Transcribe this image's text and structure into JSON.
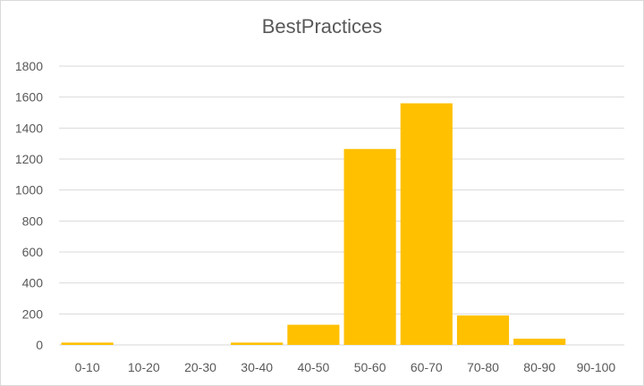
{
  "chart_data": {
    "type": "bar",
    "title": "BestPractices",
    "xlabel": "",
    "ylabel": "",
    "categories": [
      "0-10",
      "10-20",
      "20-30",
      "30-40",
      "40-50",
      "50-60",
      "60-70",
      "70-80",
      "80-90",
      "90-100"
    ],
    "values": [
      15,
      0,
      0,
      15,
      130,
      1265,
      1560,
      190,
      40,
      0
    ],
    "ylim": [
      0,
      1800
    ],
    "yticks": [
      "0",
      "200",
      "400",
      "600",
      "800",
      "1000",
      "1200",
      "1400",
      "1600",
      "1800"
    ],
    "grid": true,
    "legend": "none",
    "bar_color": "#FFC000"
  }
}
